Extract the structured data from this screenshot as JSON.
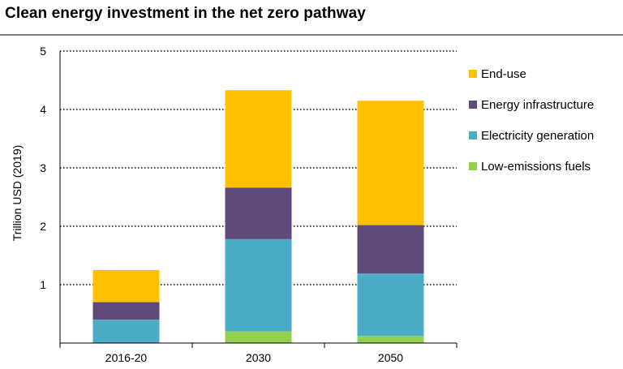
{
  "chart_data": {
    "type": "bar",
    "stacked": true,
    "title": "Clean energy investment in the net zero pathway",
    "ylabel": "Trillion USD (2019)",
    "xlabel": "",
    "ylim": [
      0,
      5
    ],
    "yticks": [
      1,
      2,
      3,
      4,
      5
    ],
    "grid": true,
    "legend_position": "right",
    "categories": [
      "2016-20",
      "2030",
      "2050"
    ],
    "series": [
      {
        "name": "Low-emissions fuels",
        "color": "#92D050",
        "values": [
          0.0,
          0.2,
          0.12
        ]
      },
      {
        "name": "Electricity generation",
        "color": "#4BACC6",
        "values": [
          0.4,
          1.58,
          1.07
        ]
      },
      {
        "name": "Energy infrastructure",
        "color": "#604A7B",
        "values": [
          0.3,
          0.88,
          0.83
        ]
      },
      {
        "name": "End-use",
        "color": "#FFC000",
        "values": [
          0.55,
          1.67,
          2.13
        ]
      }
    ],
    "legend_order": [
      "End-use",
      "Energy infrastructure",
      "Electricity generation",
      "Low-emissions fuels"
    ]
  }
}
